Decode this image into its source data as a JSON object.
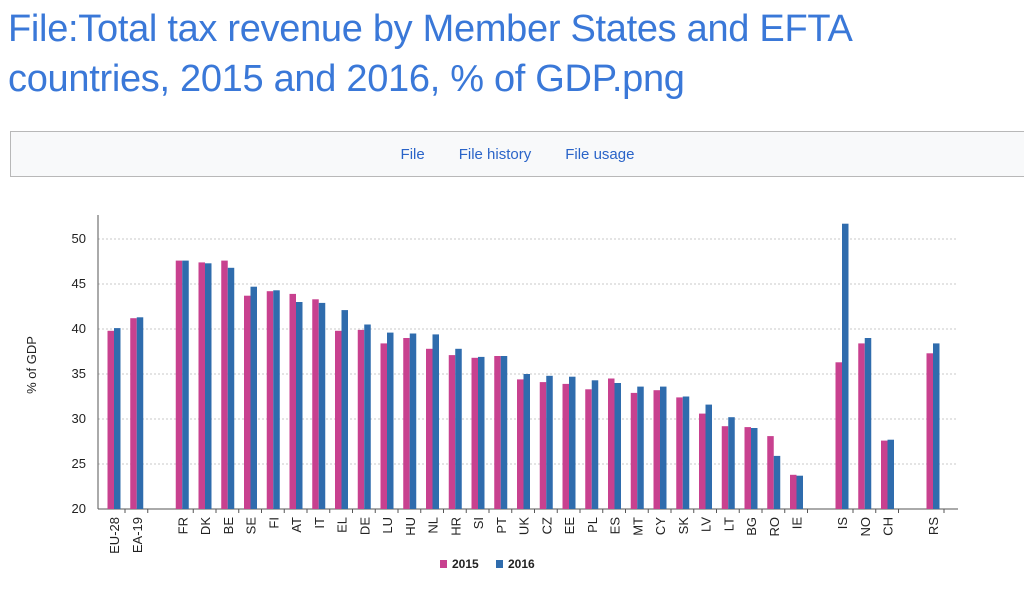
{
  "page": {
    "title": "File:Total tax revenue by Member States and EFTA countries, 2015 and 2016, % of GDP.png"
  },
  "tabs": [
    {
      "label": "File"
    },
    {
      "label": "File history"
    },
    {
      "label": "File usage"
    }
  ],
  "colors": {
    "title": "#3a78d8",
    "link": "#2a64c8",
    "series_2015": "#c8418f",
    "series_2016": "#2f6cad"
  },
  "chart_data": {
    "type": "bar",
    "ylabel": "% of GDP",
    "ylim": [
      20,
      52
    ],
    "yticks": [
      20,
      25,
      30,
      35,
      40,
      45,
      50
    ],
    "grid": true,
    "legend_position": "bottom-center",
    "categories": [
      "EU-28",
      "EA-19",
      "FR",
      "DK",
      "BE",
      "SE",
      "FI",
      "AT",
      "IT",
      "EL",
      "DE",
      "LU",
      "HU",
      "NL",
      "HR",
      "SI",
      "PT",
      "UK",
      "CZ",
      "EE",
      "PL",
      "ES",
      "MT",
      "CY",
      "SK",
      "LV",
      "LT",
      "BG",
      "RO",
      "IE",
      "IS",
      "NO",
      "CH",
      "RS"
    ],
    "series": [
      {
        "name": "2015",
        "values": [
          39.8,
          41.2,
          47.6,
          47.4,
          47.6,
          43.7,
          44.2,
          43.9,
          43.3,
          39.8,
          39.9,
          38.4,
          39.0,
          37.8,
          37.1,
          36.8,
          37.0,
          34.4,
          34.1,
          33.9,
          33.3,
          34.5,
          32.9,
          33.2,
          32.4,
          30.6,
          29.2,
          29.1,
          28.1,
          23.8,
          36.3,
          38.4,
          27.6,
          37.3
        ]
      },
      {
        "name": "2016",
        "values": [
          40.1,
          41.3,
          47.6,
          47.3,
          46.8,
          44.7,
          44.3,
          43.0,
          42.9,
          42.1,
          40.5,
          39.6,
          39.5,
          39.4,
          37.8,
          36.9,
          37.0,
          35.0,
          34.8,
          34.7,
          34.3,
          34.0,
          33.6,
          33.6,
          32.5,
          31.6,
          30.2,
          29.0,
          25.9,
          23.7,
          51.7,
          39.0,
          27.7,
          38.4
        ]
      }
    ]
  }
}
